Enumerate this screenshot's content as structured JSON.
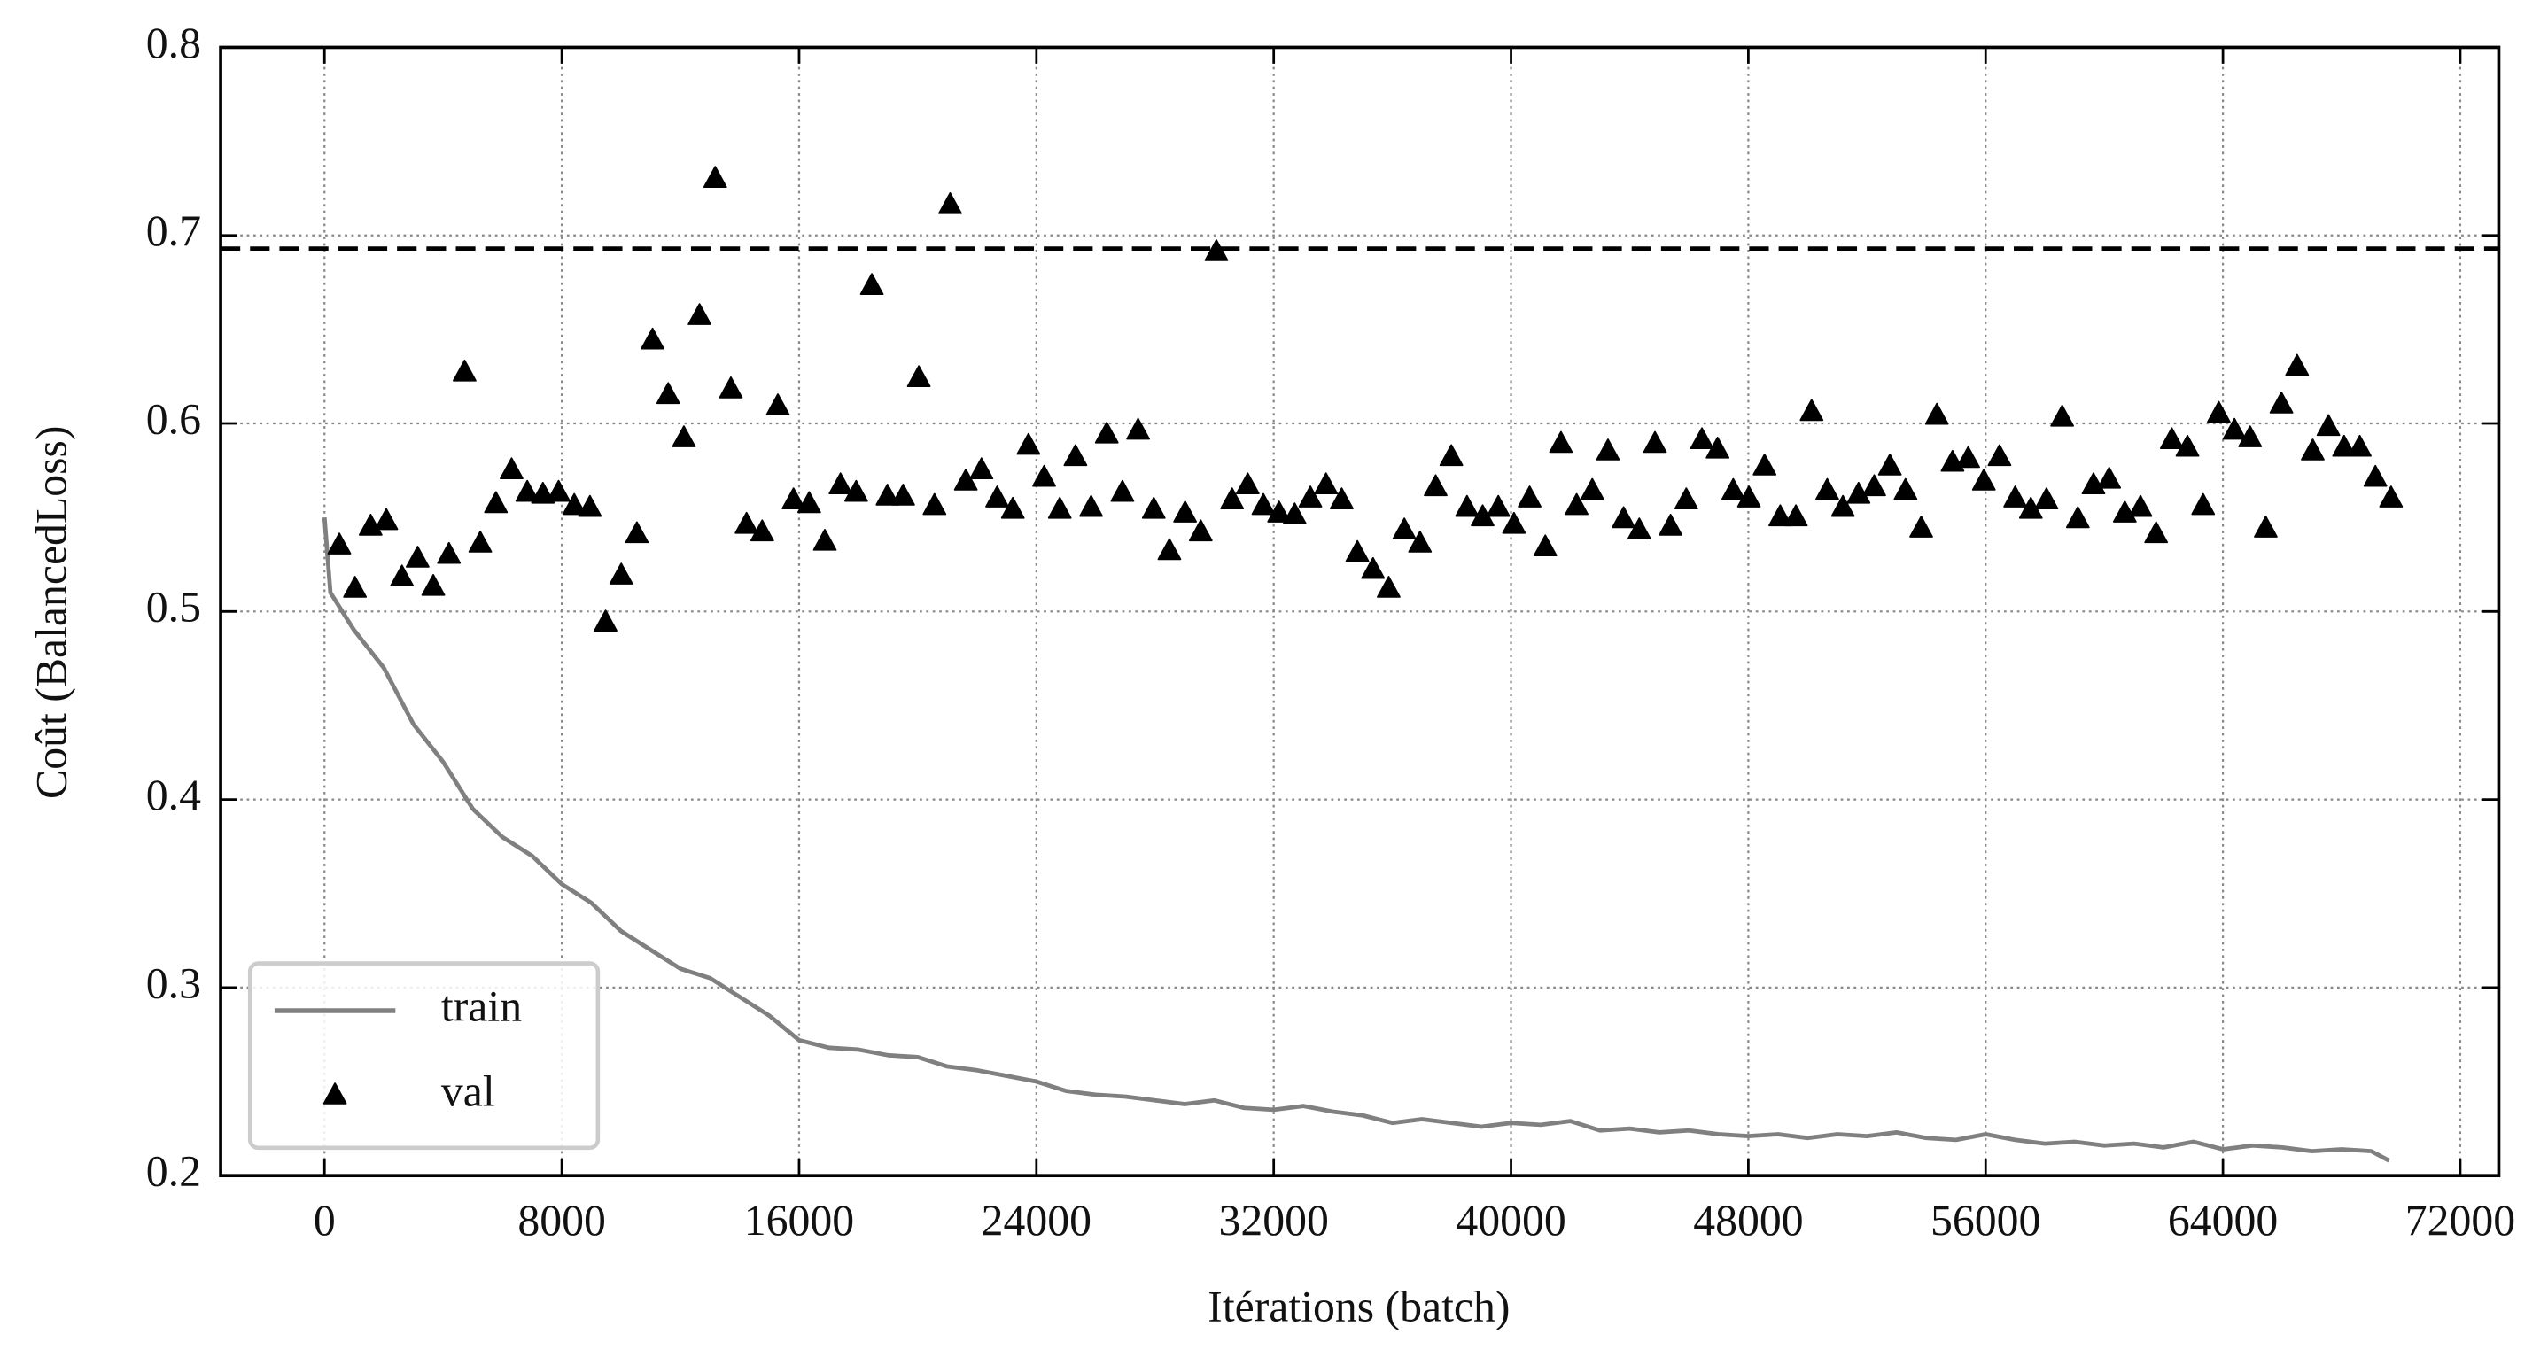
{
  "chart_data": {
    "type": "line-scatter",
    "xlabel": "Itérations (batch)",
    "ylabel": "Coût (BalancedLoss)",
    "xlim": [
      -3500,
      73300
    ],
    "ylim": [
      0.2,
      0.8
    ],
    "xticks": [
      0,
      8000,
      16000,
      24000,
      32000,
      40000,
      48000,
      56000,
      64000,
      72000
    ],
    "yticks": [
      0.2,
      0.3,
      0.4,
      0.5,
      0.6,
      0.7,
      0.8
    ],
    "grid": true,
    "legend": "lower left",
    "hline_y": 0.693,
    "series": [
      {
        "name": "train",
        "type": "line",
        "color": "#808080",
        "x": [
          0,
          200,
          1000,
          2000,
          3000,
          4000,
          5000,
          6000,
          7000,
          8000,
          9000,
          10000,
          11000,
          12000,
          13000,
          14000,
          15000,
          16000,
          17000,
          18000,
          19000,
          20000,
          21000,
          22000,
          23000,
          24000,
          25000,
          26000,
          27000,
          28000,
          29000,
          30000,
          31000,
          32000,
          33000,
          34000,
          35000,
          36000,
          37000,
          38000,
          39000,
          40000,
          41000,
          42000,
          43000,
          44000,
          45000,
          46000,
          47000,
          48000,
          49000,
          50000,
          51000,
          52000,
          53000,
          54000,
          55000,
          56000,
          57000,
          58000,
          59000,
          60000,
          61000,
          62000,
          63000,
          64000,
          65000,
          66000,
          67000,
          68000,
          69000,
          69600
        ],
        "values": [
          0.55,
          0.51,
          0.49,
          0.47,
          0.44,
          0.42,
          0.395,
          0.38,
          0.37,
          0.355,
          0.345,
          0.33,
          0.32,
          0.31,
          0.305,
          0.295,
          0.285,
          0.272,
          0.268,
          0.267,
          0.264,
          0.263,
          0.258,
          0.256,
          0.253,
          0.25,
          0.245,
          0.243,
          0.242,
          0.24,
          0.238,
          0.24,
          0.236,
          0.235,
          0.237,
          0.234,
          0.232,
          0.228,
          0.23,
          0.228,
          0.226,
          0.228,
          0.227,
          0.229,
          0.224,
          0.225,
          0.223,
          0.224,
          0.222,
          0.221,
          0.222,
          0.22,
          0.222,
          0.221,
          0.223,
          0.22,
          0.219,
          0.222,
          0.219,
          0.217,
          0.218,
          0.216,
          0.217,
          0.215,
          0.218,
          0.214,
          0.216,
          0.215,
          0.213,
          0.214,
          0.213,
          0.208
        ]
      },
      {
        "name": "val",
        "type": "scatter",
        "color": "#000000",
        "x": [
          500,
          1028,
          1556,
          2084,
          2612,
          3140,
          3668,
          4196,
          4724,
          5252,
          5780,
          6308,
          6836,
          7364,
          7892,
          8420,
          8948,
          9476,
          10004,
          10532,
          11060,
          11588,
          12116,
          12644,
          13172,
          13700,
          14228,
          14756,
          15284,
          15812,
          16340,
          16868,
          17396,
          17924,
          18452,
          18980,
          19508,
          20036,
          20564,
          21092,
          21620,
          22148,
          22676,
          23204,
          23732,
          24260,
          24788,
          25316,
          25844,
          26372,
          26900,
          27428,
          27956,
          28484,
          29012,
          29540,
          30068,
          30596,
          31124,
          31652,
          32180,
          32708,
          33236,
          33764,
          34292,
          34820,
          35348,
          35876,
          36404,
          36932,
          37460,
          37988,
          38516,
          39044,
          39572,
          40100,
          40628,
          41156,
          41684,
          42212,
          42740,
          43268,
          43796,
          44324,
          44852,
          45380,
          45908,
          46436,
          46964,
          47492,
          48020,
          48548,
          49076,
          49604,
          50132,
          50660,
          51188,
          51716,
          52244,
          52772,
          53300,
          53828,
          54356,
          54884,
          55412,
          55940,
          56468,
          56996,
          57524,
          58052,
          58580,
          59108,
          59636,
          60164,
          60692,
          61220,
          61748,
          62276,
          62804,
          63332,
          63860,
          64388,
          64916,
          65444,
          65972,
          66500,
          67028,
          67556,
          68084,
          68612,
          69140,
          69668
        ],
        "values": [
          0.535,
          0.512,
          0.545,
          0.548,
          0.518,
          0.528,
          0.513,
          0.53,
          0.627,
          0.536,
          0.557,
          0.575,
          0.563,
          0.562,
          0.563,
          0.556,
          0.555,
          0.494,
          0.519,
          0.541,
          0.644,
          0.615,
          0.592,
          0.657,
          0.73,
          0.618,
          0.546,
          0.542,
          0.609,
          0.559,
          0.557,
          0.537,
          0.567,
          0.563,
          0.673,
          0.561,
          0.561,
          0.624,
          0.556,
          0.716,
          0.569,
          0.575,
          0.56,
          0.554,
          0.588,
          0.571,
          0.554,
          0.582,
          0.555,
          0.594,
          0.563,
          0.596,
          0.554,
          0.532,
          0.552,
          0.542,
          0.691,
          0.559,
          0.567,
          0.556,
          0.552,
          0.551,
          0.56,
          0.567,
          0.559,
          0.531,
          0.522,
          0.512,
          0.543,
          0.536,
          0.566,
          0.582,
          0.555,
          0.55,
          0.555,
          0.546,
          0.56,
          0.534,
          0.589,
          0.556,
          0.564,
          0.585,
          0.549,
          0.543,
          0.589,
          0.545,
          0.559,
          0.591,
          0.586,
          0.564,
          0.56,
          0.577,
          0.55,
          0.55,
          0.606,
          0.564,
          0.555,
          0.562,
          0.566,
          0.577,
          0.564,
          0.544,
          0.604,
          0.579,
          0.581,
          0.569,
          0.582,
          0.56,
          0.554,
          0.559,
          0.603,
          0.549,
          0.567,
          0.57,
          0.552,
          0.555,
          0.541,
          0.591,
          0.587,
          0.556,
          0.605,
          0.596,
          0.592,
          0.544,
          0.61,
          0.63,
          0.585,
          0.598,
          0.587,
          0.587,
          0.571,
          0.56
        ]
      }
    ]
  }
}
